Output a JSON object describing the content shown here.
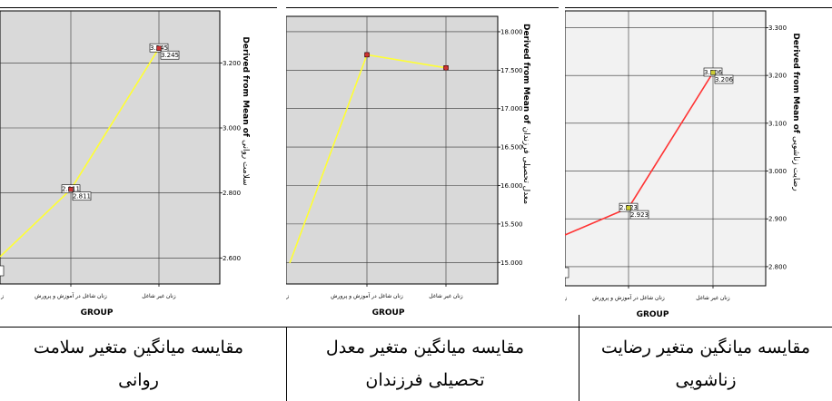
{
  "chart_data": [
    {
      "type": "line",
      "xlabel": "GROUP",
      "ylabel_en": "Derived from Mean of",
      "ylabel_fa": "سلامت روانی",
      "categories": [
        "زنان شاغل در آموزش و پرورش",
        "زنان غیر شاغل"
      ],
      "cut_category": "ز",
      "values": [
        2.811,
        3.245
      ],
      "overlap_labels": [
        "2.811",
        "3.245"
      ],
      "yticks": [
        2.6,
        2.8,
        3.0,
        3.2
      ],
      "ytick_labels": [
        "2.600",
        "2.800",
        "3.000",
        "3.200"
      ],
      "ylim": [
        2.52,
        3.36
      ],
      "line_color": "#ffff33",
      "marker_color": "#cc3333",
      "background": "#d9d9d9",
      "grid": true
    },
    {
      "type": "line",
      "xlabel": "GROUP",
      "ylabel_en": "Derived from Mean of",
      "ylabel_fa": "معدل تحصیلی فرزندان",
      "categories": [
        "زنان شاغل در آموزش و پرورش",
        "زنان غیر شاغل"
      ],
      "cut_category": "زنان شا",
      "values": [
        17.7,
        17.53
      ],
      "yticks": [
        15.0,
        15.5,
        16.0,
        16.5,
        17.0,
        17.5,
        18.0
      ],
      "ytick_labels": [
        "15.000",
        "15.500",
        "16.000",
        "16.500",
        "17.000",
        "17.500",
        "18.000"
      ],
      "ylim": [
        14.72,
        18.2
      ],
      "line_color": "#ffff33",
      "marker_color": "#cc3333",
      "background": "#d9d9d9",
      "grid": true
    },
    {
      "type": "line",
      "xlabel": "GROUP",
      "ylabel_en": "Derived from Mean of",
      "ylabel_fa": "رضایت زناشویی",
      "categories": [
        "زنان شاغل در آموزش و پرورش",
        "زنان غیر شاغل"
      ],
      "cut_category": "ز",
      "values": [
        2.923,
        3.206
      ],
      "overlap_labels": [
        "2.923",
        "3.206"
      ],
      "yticks": [
        2.8,
        2.9,
        3.0,
        3.1,
        3.2,
        3.3
      ],
      "ytick_labels": [
        "2.800",
        "2.900",
        "3.000",
        "3.100",
        "3.200",
        "3.300"
      ],
      "ylim": [
        2.76,
        3.335
      ],
      "line_color": "#ff3333",
      "marker_color": "#cccc33",
      "background": "#f2f2f2",
      "grid": true
    }
  ],
  "captions": [
    "مقایسه میانگین متغیر سلامت روانی",
    "مقایسه میانگین متغیر معدل تحصیلی فرزندان",
    "مقایسه میانگین متغیر رضایت زناشویی"
  ]
}
